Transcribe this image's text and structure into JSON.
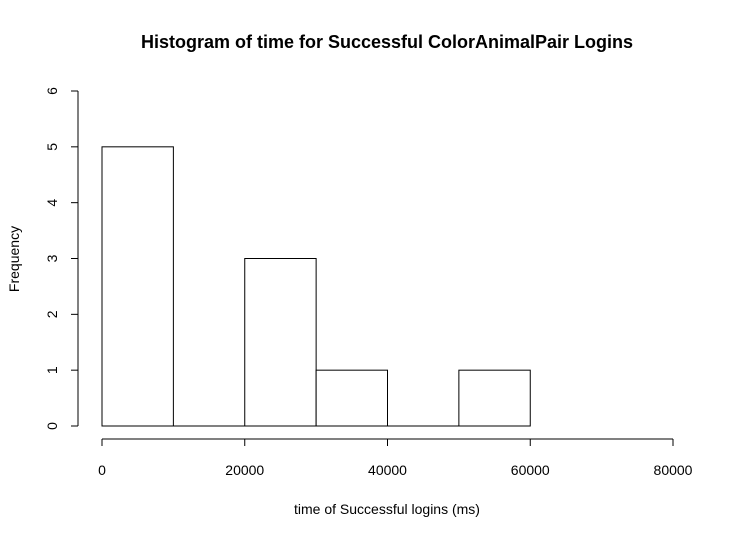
{
  "chart_data": {
    "type": "bar",
    "title": "Histogram of time for Successful ColorAnimalPair Logins",
    "xlabel": "time of Successful logins (ms)",
    "ylabel": "Frequency",
    "xlim": [
      0,
      80000
    ],
    "ylim": [
      0,
      6
    ],
    "x_ticks": [
      0,
      20000,
      40000,
      60000,
      80000
    ],
    "y_ticks": [
      0,
      1,
      2,
      3,
      4,
      5,
      6
    ],
    "bins": [
      {
        "start": 0,
        "end": 10000,
        "count": 5
      },
      {
        "start": 10000,
        "end": 20000,
        "count": 0
      },
      {
        "start": 20000,
        "end": 30000,
        "count": 3
      },
      {
        "start": 30000,
        "end": 40000,
        "count": 1
      },
      {
        "start": 40000,
        "end": 50000,
        "count": 0
      },
      {
        "start": 50000,
        "end": 60000,
        "count": 1
      }
    ],
    "grid": false,
    "bar_fill": "#ffffff",
    "bar_stroke": "#000000"
  }
}
